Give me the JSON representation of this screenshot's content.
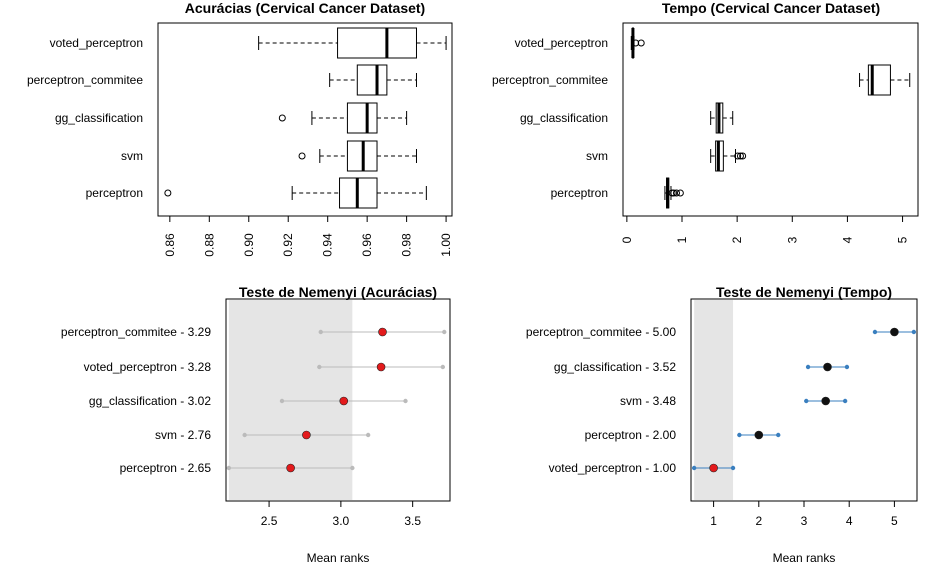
{
  "chart_data": [
    {
      "id": "acc",
      "type": "boxplot",
      "orientation": "horizontal",
      "title": "Acurácias (Cervical Cancer Dataset)",
      "categories": [
        "voted_perceptron",
        "perceptron_commitee",
        "gg_classification",
        "svm",
        "perceptron"
      ],
      "boxes": [
        {
          "name": "voted_perceptron",
          "whisker_low": 0.905,
          "q1": 0.945,
          "median": 0.97,
          "q3": 0.985,
          "whisker_high": 1.0,
          "outliers": []
        },
        {
          "name": "perceptron_commitee",
          "whisker_low": 0.941,
          "q1": 0.955,
          "median": 0.965,
          "q3": 0.97,
          "whisker_high": 0.985,
          "outliers": []
        },
        {
          "name": "gg_classification",
          "whisker_low": 0.932,
          "q1": 0.95,
          "median": 0.96,
          "q3": 0.965,
          "whisker_high": 0.98,
          "outliers": [
            0.917
          ]
        },
        {
          "name": "svm",
          "whisker_low": 0.936,
          "q1": 0.95,
          "median": 0.958,
          "q3": 0.965,
          "whisker_high": 0.985,
          "outliers": [
            0.927
          ]
        },
        {
          "name": "perceptron",
          "whisker_low": 0.922,
          "q1": 0.946,
          "median": 0.955,
          "q3": 0.965,
          "whisker_high": 0.99,
          "outliers": [
            0.859
          ]
        }
      ],
      "xlim": [
        0.854,
        1.003
      ],
      "ticks": [
        "0.86",
        "0.88",
        "0.90",
        "0.92",
        "0.94",
        "0.96",
        "0.98",
        "1.00"
      ]
    },
    {
      "id": "time",
      "type": "boxplot",
      "orientation": "horizontal",
      "title": "Tempo (Cervical Cancer Dataset)",
      "categories": [
        "voted_perceptron",
        "perceptron_commitee",
        "gg_classification",
        "svm",
        "perceptron"
      ],
      "boxes": [
        {
          "name": "voted_perceptron",
          "whisker_low": 0.08,
          "q1": 0.1,
          "median": 0.11,
          "q3": 0.12,
          "whisker_high": 0.13,
          "outliers": [
            0.16,
            0.26
          ]
        },
        {
          "name": "perceptron_commitee",
          "whisker_low": 4.22,
          "q1": 4.38,
          "median": 4.45,
          "q3": 4.78,
          "whisker_high": 5.13,
          "outliers": []
        },
        {
          "name": "gg_classification",
          "whisker_low": 1.52,
          "q1": 1.62,
          "median": 1.67,
          "q3": 1.74,
          "whisker_high": 1.92,
          "outliers": []
        },
        {
          "name": "svm",
          "whisker_low": 1.52,
          "q1": 1.61,
          "median": 1.66,
          "q3": 1.75,
          "whisker_high": 1.97,
          "outliers": [
            2.01,
            2.06,
            2.1
          ]
        },
        {
          "name": "perceptron",
          "whisker_low": 0.69,
          "q1": 0.72,
          "median": 0.74,
          "q3": 0.76,
          "whisker_high": 0.8,
          "outliers": [
            0.82,
            0.85,
            0.9,
            0.97
          ]
        }
      ],
      "xlim": [
        -0.07,
        5.28
      ],
      "ticks": [
        "0",
        "1",
        "2",
        "3",
        "4",
        "5"
      ]
    },
    {
      "id": "nemAcc",
      "type": "interval",
      "title": "Teste de Nemenyi (Acurácias)",
      "xlabel": "Mean ranks",
      "labels": [
        "perceptron_commitee - 3.29",
        "voted_perceptron - 3.28",
        "gg_classification - 3.02",
        "svm - 2.76",
        "perceptron - 2.65"
      ],
      "values": [
        3.29,
        3.28,
        3.02,
        2.76,
        2.65
      ],
      "critical_difference": 0.43,
      "shaded_range": [
        2.22,
        3.08
      ],
      "xlim": [
        2.2,
        3.76
      ],
      "ticks": [
        "2.5",
        "3.0",
        "3.5"
      ],
      "colors": {
        "point": "#e31a1c",
        "interval": "#bbbbbb",
        "shade": "#e5e5e5"
      }
    },
    {
      "id": "nemTime",
      "type": "interval",
      "title": "Teste de Nemenyi (Tempo)",
      "xlabel": "Mean ranks",
      "labels": [
        "perceptron_commitee - 5.00",
        "gg_classification - 3.52",
        "svm - 3.48",
        "perceptron - 2.00",
        "voted_perceptron - 1.00"
      ],
      "values": [
        5.0,
        3.52,
        3.48,
        2.0,
        1.0
      ],
      "critical_difference": 0.43,
      "shaded_range": [
        0.57,
        1.43
      ],
      "xlim": [
        0.5,
        5.5
      ],
      "ticks": [
        "1",
        "2",
        "3",
        "4",
        "5"
      ],
      "colors": {
        "point": "#111111",
        "point_best": "#e31a1c",
        "interval": "#3a7fbf",
        "shade": "#e5e5e5"
      }
    }
  ]
}
